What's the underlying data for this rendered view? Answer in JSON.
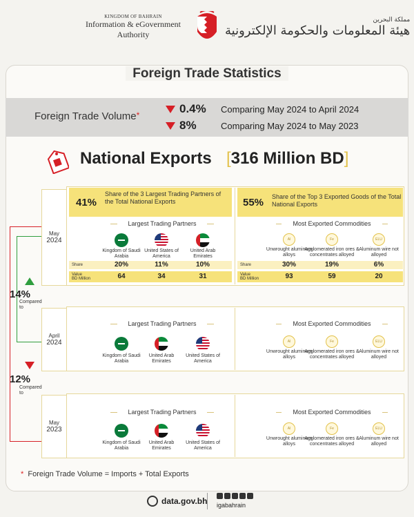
{
  "header": {
    "kingdom": "KINGDOM OF BAHRAIN",
    "org_line1": "Information & eGovernment",
    "org_line2": "Authority",
    "org_arabic_small": "مملكة البحرين",
    "org_arabic": "هيئة المعلومات والحكومة الإلكترونية"
  },
  "title": "Foreign Trade Statistics",
  "volume": {
    "label": "Foreign Trade Volume",
    "asterisk": "*",
    "rows": [
      {
        "pct": "0.4%",
        "compare": "Comparing May 2024 to April 2024",
        "direction": "down"
      },
      {
        "pct": "8%",
        "compare": "Comparing May 2024 to May 2023",
        "direction": "down"
      }
    ]
  },
  "national_exports": {
    "title": "National Exports",
    "value": "316 Million BD",
    "bracket_open": "[",
    "bracket_close": "]"
  },
  "may2024": {
    "month": "May",
    "year": "2024",
    "partners_share_pct": "41%",
    "partners_share_text": "Share of the 3 Largest Trading Partners of the Total National Exports",
    "goods_share_pct": "55%",
    "goods_share_text": "Share of the Top 3 Exported Goods of the Total National Exports",
    "partners_head": "Largest Trading Partners",
    "goods_head": "Most Exported Commodities",
    "partners": [
      "Kingdom of Saudi Arabia",
      "United States of America",
      "United Arab Emirates"
    ],
    "goods": [
      "Unwrought aluminum alloys",
      "Agglomerated iron ores & concentrates alloyed",
      "Aluminum wire not alloyed"
    ],
    "share_label": "Share",
    "value_label_1": "Value",
    "value_label_2": "BD Million",
    "partner_shares": [
      "20%",
      "11%",
      "10%"
    ],
    "partner_values": [
      "64",
      "34",
      "31"
    ],
    "goods_shares": [
      "30%",
      "19%",
      "6%"
    ],
    "goods_values": [
      "93",
      "59",
      "20"
    ]
  },
  "apr2024": {
    "month": "April",
    "year": "2024",
    "partners_head": "Largest Trading Partners",
    "goods_head": "Most Exported Commodities",
    "partners": [
      "Kingdom of Saudi Arabia",
      "United Arab Emirates",
      "United States of America"
    ],
    "goods": [
      "Unwrought aluminum alloys",
      "Agglomerated iron ores & concentrates alloyed",
      "Aluminum wire not alloyed"
    ]
  },
  "may2023": {
    "month": "May",
    "year": "2023",
    "partners_head": "Largest Trading Partners",
    "goods_head": "Most Exported Commodities",
    "partners": [
      "Kingdom of Saudi Arabia",
      "United Arab Emirates",
      "United States of America"
    ],
    "goods": [
      "Unwrought aluminum alloys",
      "Agglomerated iron ores & concentrates alloyed",
      "Aluminum wire not alloyed"
    ]
  },
  "changes": [
    {
      "pct": "14%",
      "label": "Compared to",
      "direction": "up"
    },
    {
      "pct": "12%",
      "label": "Compared to",
      "direction": "down"
    }
  ],
  "product_icons": [
    "Al",
    "Fe",
    "ELU"
  ],
  "footnote": {
    "asterisk": "*",
    "text": "Foreign Trade Volume = Imports + Total Exports"
  },
  "footer": {
    "site": "data.gov.bh",
    "handle": "igabahrain"
  },
  "colors": {
    "accent_yellow": "#f6e27a",
    "down_red": "#d61f26",
    "up_green": "#2f9e3e"
  }
}
